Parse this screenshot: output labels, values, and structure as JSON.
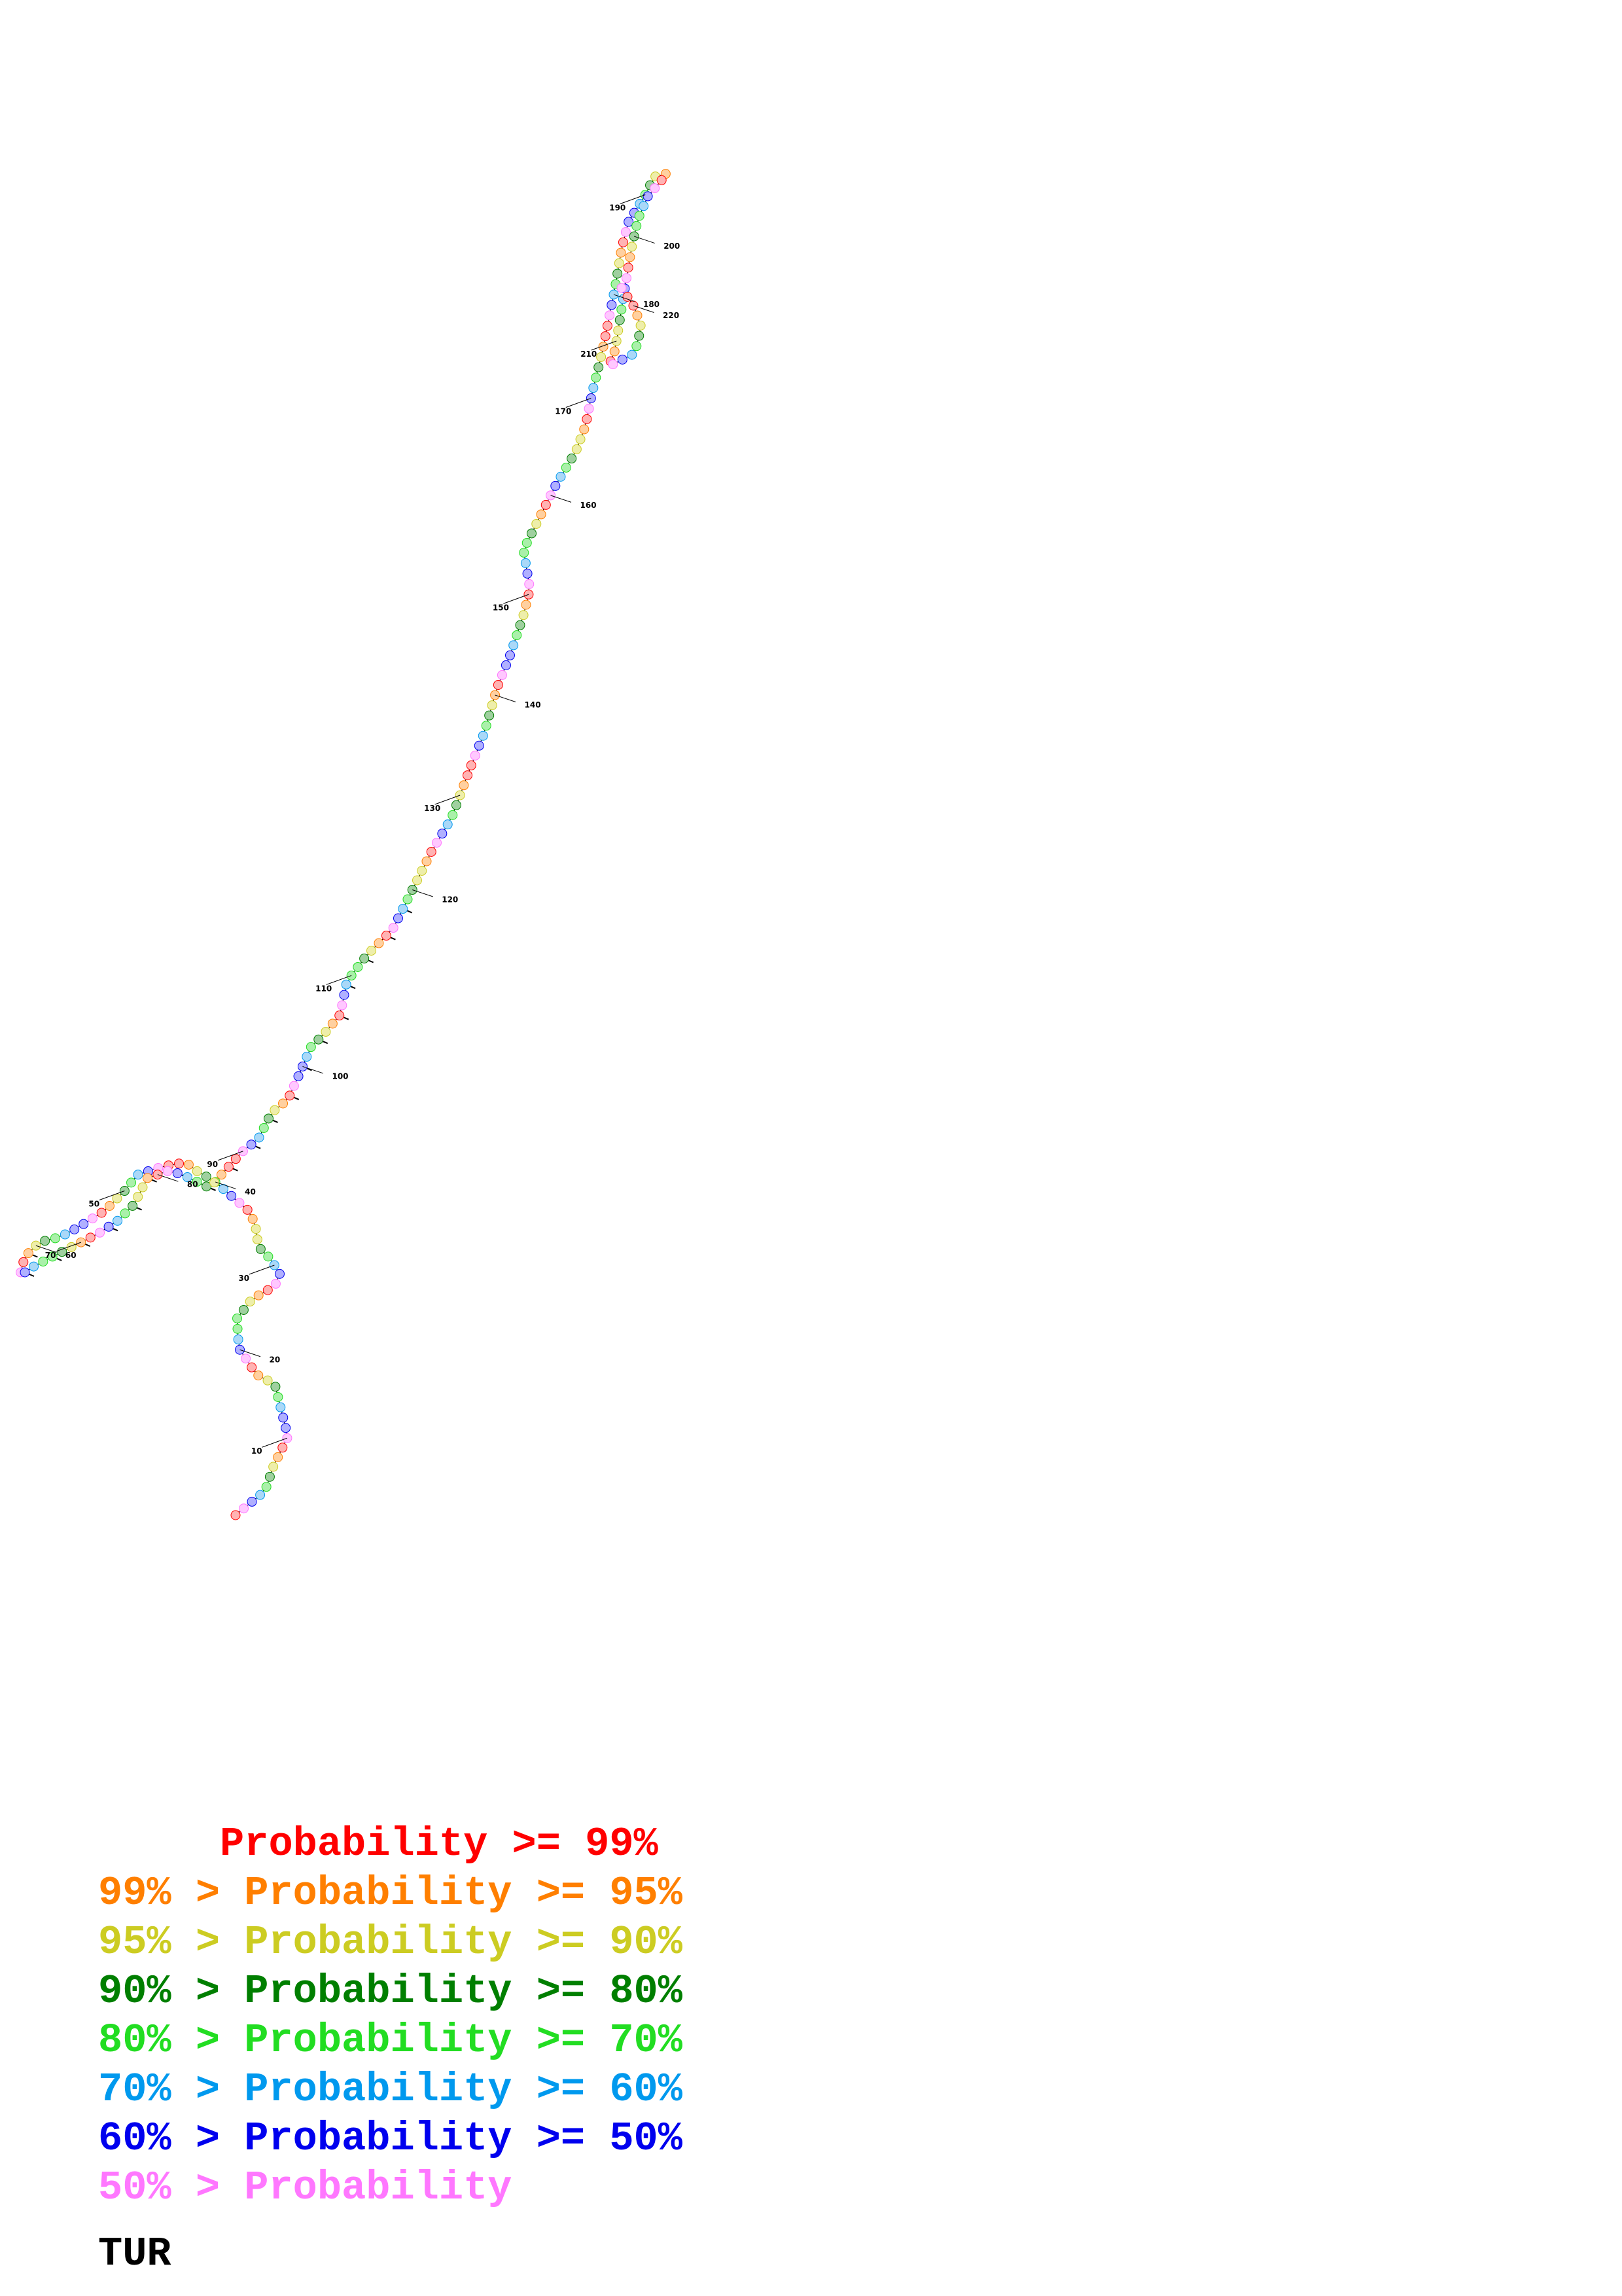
{
  "diagram": {
    "tick_labels": [
      "10",
      "20",
      "30",
      "40",
      "50",
      "60",
      "70",
      "80",
      "90",
      "100",
      "110",
      "120",
      "130",
      "140",
      "150",
      "160",
      "170",
      "180",
      "190",
      "200",
      "210",
      "220"
    ]
  },
  "legend": {
    "rows": [
      {
        "text": "     Probability >= 99%",
        "color": "#ff0000"
      },
      {
        "text": "99% > Probability >= 95%",
        "color": "#ff7f00"
      },
      {
        "text": "95% > Probability >= 90%",
        "color": "#cccc22"
      },
      {
        "text": "90% > Probability >= 80%",
        "color": "#007f00"
      },
      {
        "text": "80% > Probability >= 70%",
        "color": "#22dd22"
      },
      {
        "text": "70% > Probability >= 60%",
        "color": "#0099ee"
      },
      {
        "text": "60% > Probability >= 50%",
        "color": "#0000ee"
      },
      {
        "text": "50% > Probability",
        "color": "#ff77ff"
      }
    ]
  },
  "title": "TUR"
}
